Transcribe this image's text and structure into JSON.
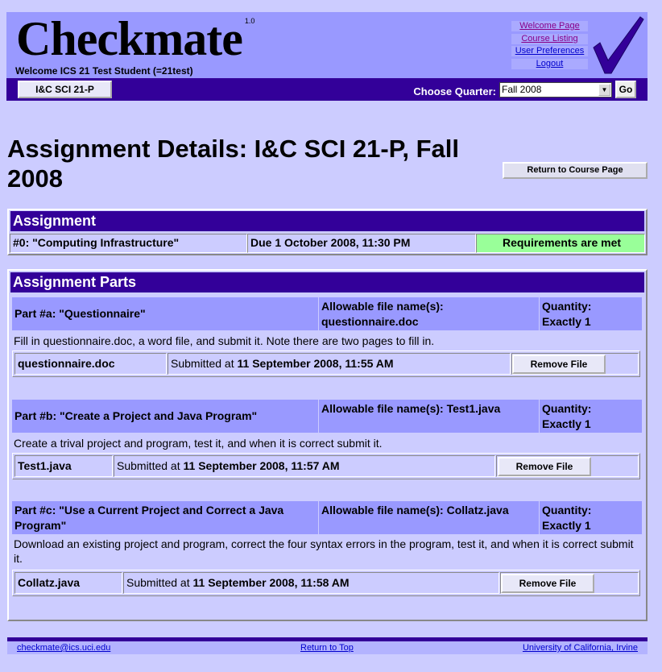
{
  "app": {
    "logo": "Checkmate",
    "version": "1.0",
    "welcome": "Welcome ICS 21 Test Student (=21test)"
  },
  "nav": {
    "welcome": "Welcome Page",
    "courses": "Course Listing",
    "prefs": "User Preferences",
    "logout": "Logout"
  },
  "bar": {
    "course": "I&C SCI 21-P",
    "choose_label": "Choose Quarter:",
    "quarter": "Fall 2008",
    "go": "Go"
  },
  "page": {
    "title": "Assignment Details: I&C SCI 21-P, Fall 2008",
    "return": "Return to Course Page"
  },
  "assignment": {
    "header": "Assignment",
    "name": "#0: \"Computing Infrastructure\"",
    "due": "Due 1 October 2008, 11:30 PM",
    "status": "Requirements are met",
    "status_color": "#99ff99"
  },
  "parts": {
    "header": "Assignment Parts",
    "items": [
      {
        "title": "Part #a: \"Questionnaire\"",
        "files_label": "Allowable file name(s):",
        "files": "questionnaire.doc",
        "qty_label": "Quantity:",
        "qty": "Exactly 1",
        "desc": "Fill in questionnaire.doc, a word file, and submit it. Note there are two pages to fill in.",
        "file": "questionnaire.doc",
        "submitted_prefix": "Submitted at",
        "submitted": "11 September 2008, 11:55 AM",
        "remove": "Remove File"
      },
      {
        "title": "Part #b: \"Create a Project and Java Program\"",
        "files_label": "Allowable file name(s):",
        "files": "Test1.java",
        "qty_label": "Quantity:",
        "qty": "Exactly 1",
        "desc": "Create a trival project and program, test it, and when it is correct submit it.",
        "file": "Test1.java",
        "submitted_prefix": "Submitted at",
        "submitted": "11 September 2008, 11:57 AM",
        "remove": "Remove File"
      },
      {
        "title": "Part #c: \"Use a Current Project and Correct a Java Program\"",
        "files_label": "Allowable file name(s):",
        "files": "Collatz.java",
        "qty_label": "Quantity:",
        "qty": "Exactly 1",
        "desc": "Download an existing project and program, correct the four syntax errors in the program, test it, and when it is correct submit it.",
        "file": "Collatz.java",
        "submitted_prefix": "Submitted at",
        "submitted": "11 September 2008, 11:58 AM",
        "remove": "Remove File"
      }
    ]
  },
  "footer": {
    "email": "checkmate@ics.uci.edu",
    "top": "Return to Top",
    "uci": "University of California, Irvine"
  },
  "colors": {
    "background": "#ccccff",
    "header": "#9999ff",
    "bar": "#330099"
  }
}
